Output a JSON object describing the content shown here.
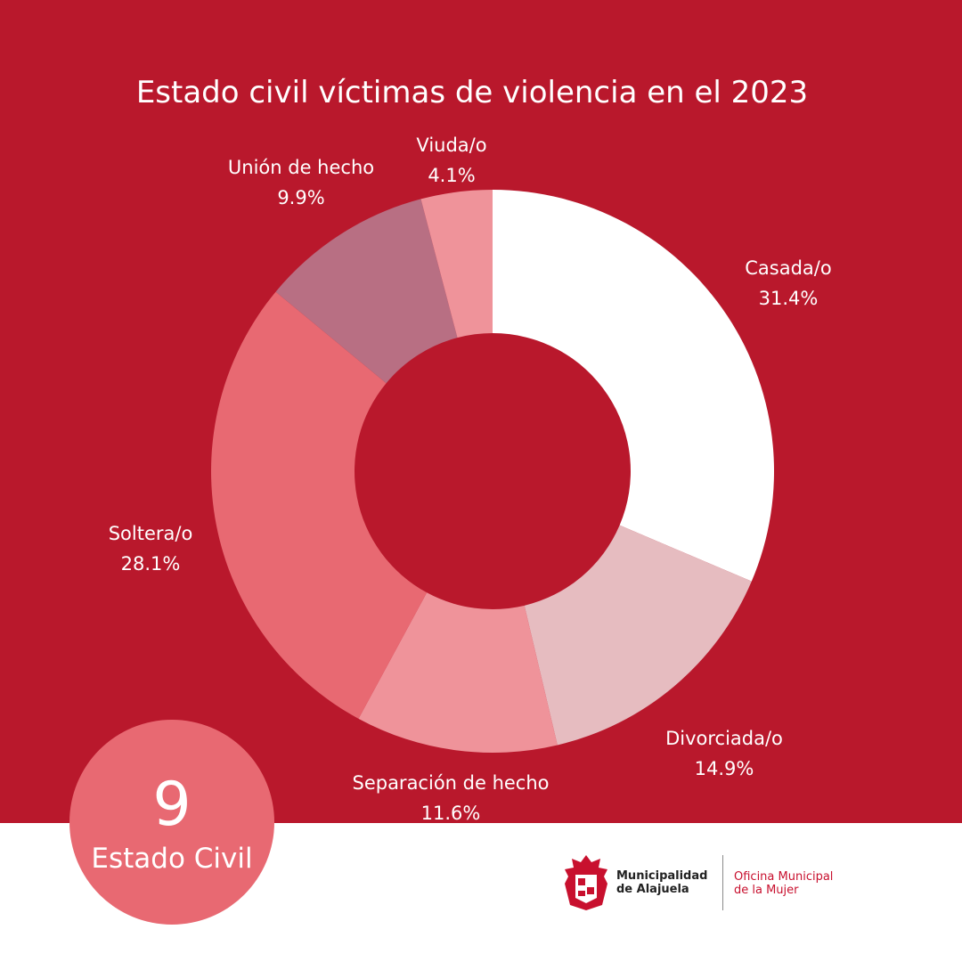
{
  "chart_data": {
    "type": "pie",
    "variant": "donut",
    "title": "Estado civil víctimas de violencia en el 2023",
    "slices": [
      {
        "name": "Casada/o",
        "value": 31.4,
        "display": "31.4%",
        "color": "#ffffff"
      },
      {
        "name": "Divorciada/o",
        "value": 14.9,
        "display": "14.9%",
        "color": "#e6bcc0"
      },
      {
        "name": "Separación de hecho",
        "value": 11.6,
        "display": "11.6%",
        "color": "#ef939a"
      },
      {
        "name": "Soltera/o",
        "value": 28.1,
        "display": "28.1%",
        "color": "#e86972"
      },
      {
        "name": "Unión de hecho",
        "value": 9.9,
        "display": "9.9%",
        "color": "#b86f83"
      },
      {
        "name": "Viuda/o",
        "value": 4.1,
        "display": "4.1%",
        "color": "#ef939a"
      }
    ],
    "start_angle_deg": 0,
    "direction": "clockwise",
    "legend": "none"
  },
  "badge": {
    "number": "9",
    "label": "Estado Civil"
  },
  "logo": {
    "municipality_line1": "Municipalidad",
    "municipality_line2": "de Alajuela",
    "office_line1": "Oficina Municipal",
    "office_line2": "de la Mujer"
  },
  "colors": {
    "background_red": "#b9182c",
    "badge_pink": "#e86972",
    "office_text_red": "#c8102e"
  }
}
